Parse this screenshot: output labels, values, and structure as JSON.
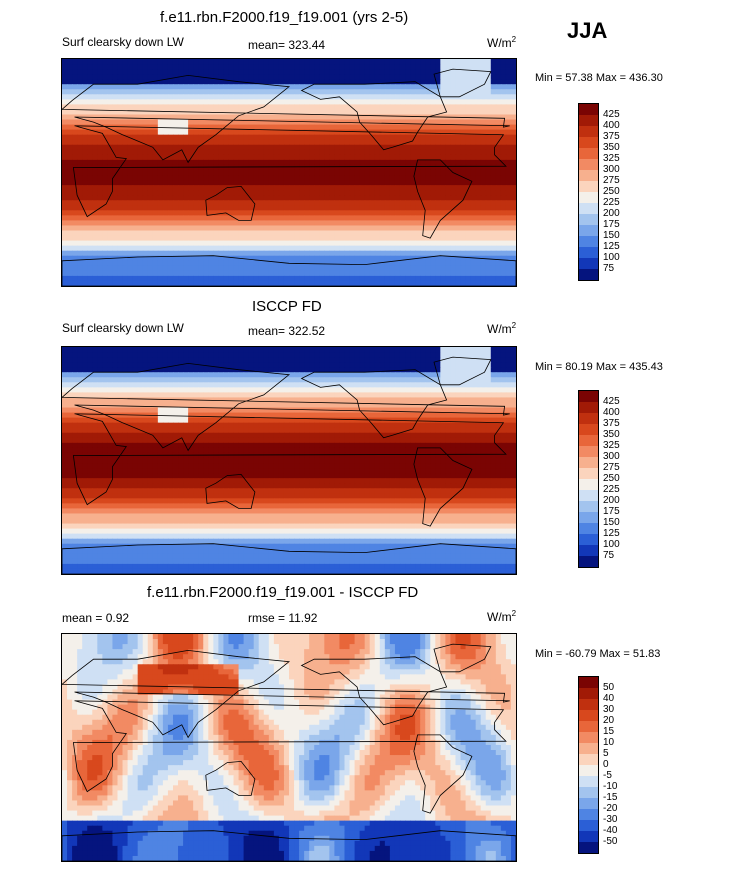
{
  "season_label": "JJA",
  "panels": [
    {
      "title": "f.e11.rbn.F2000.f19_f19.001 (yrs 2-5)",
      "left_label": "Surf clearsky down LW",
      "center_label": "mean= 323.44",
      "units_base": "W/m",
      "units_exp": "2",
      "minmax": "Min =  57.38 Max = 436.30"
    },
    {
      "title": "ISCCP FD",
      "left_label": "Surf clearsky down LW",
      "center_label": "mean= 322.52",
      "units_base": "W/m",
      "units_exp": "2",
      "minmax": "Min =  80.19 Max = 435.43"
    },
    {
      "title": "f.e11.rbn.F2000.f19_f19.001 - ISCCP FD",
      "left_label": "mean =   0.92",
      "center_label": "rmse =  11.92",
      "units_base": "W/m",
      "units_exp": "2",
      "minmax": "Min = -60.79 Max =  51.83"
    }
  ],
  "chart_data": [
    {
      "type": "heatmap",
      "title": "f.e11.rbn.F2000.f19_f19.001 (yrs 2-5)",
      "variable": "Surf clearsky down LW",
      "mean": 323.44,
      "min": 57.38,
      "max": 436.3,
      "units": "W/m^2",
      "colorbar_levels": [
        425,
        400,
        375,
        350,
        325,
        300,
        275,
        250,
        225,
        200,
        175,
        150,
        125,
        100,
        75
      ],
      "colorbar_colors": [
        "#7a0403",
        "#a11a06",
        "#c0300f",
        "#d8481d",
        "#e8663a",
        "#f28a63",
        "#f7b08e",
        "#fbd4bd",
        "#f4f0ea",
        "#cfe0f4",
        "#a3c4ee",
        "#7aa6ea",
        "#4f84e3",
        "#2b5fd6",
        "#1237b8",
        "#05147e"
      ]
    },
    {
      "type": "heatmap",
      "title": "ISCCP FD",
      "variable": "Surf clearsky down LW",
      "mean": 322.52,
      "min": 80.19,
      "max": 435.43,
      "units": "W/m^2",
      "colorbar_levels": [
        425,
        400,
        375,
        350,
        325,
        300,
        275,
        250,
        225,
        200,
        175,
        150,
        125,
        100,
        75
      ],
      "colorbar_colors": [
        "#7a0403",
        "#a11a06",
        "#c0300f",
        "#d8481d",
        "#e8663a",
        "#f28a63",
        "#f7b08e",
        "#fbd4bd",
        "#f4f0ea",
        "#cfe0f4",
        "#a3c4ee",
        "#7aa6ea",
        "#4f84e3",
        "#2b5fd6",
        "#1237b8",
        "#05147e"
      ]
    },
    {
      "type": "heatmap",
      "title": "f.e11.rbn.F2000.f19_f19.001 - ISCCP FD",
      "mean": 0.92,
      "rmse": 11.92,
      "min": -60.79,
      "max": 51.83,
      "units": "W/m^2",
      "colorbar_levels": [
        50,
        40,
        30,
        20,
        15,
        10,
        5,
        0,
        -5,
        -10,
        -15,
        -20,
        -30,
        -40,
        -50
      ],
      "colorbar_colors": [
        "#7a0403",
        "#a11a06",
        "#c0300f",
        "#d8481d",
        "#e8663a",
        "#f28a63",
        "#f7b08e",
        "#fbd4bd",
        "#f4f0ea",
        "#cfe0f4",
        "#a3c4ee",
        "#7aa6ea",
        "#4f84e3",
        "#2b5fd6",
        "#1237b8",
        "#05147e"
      ]
    }
  ]
}
